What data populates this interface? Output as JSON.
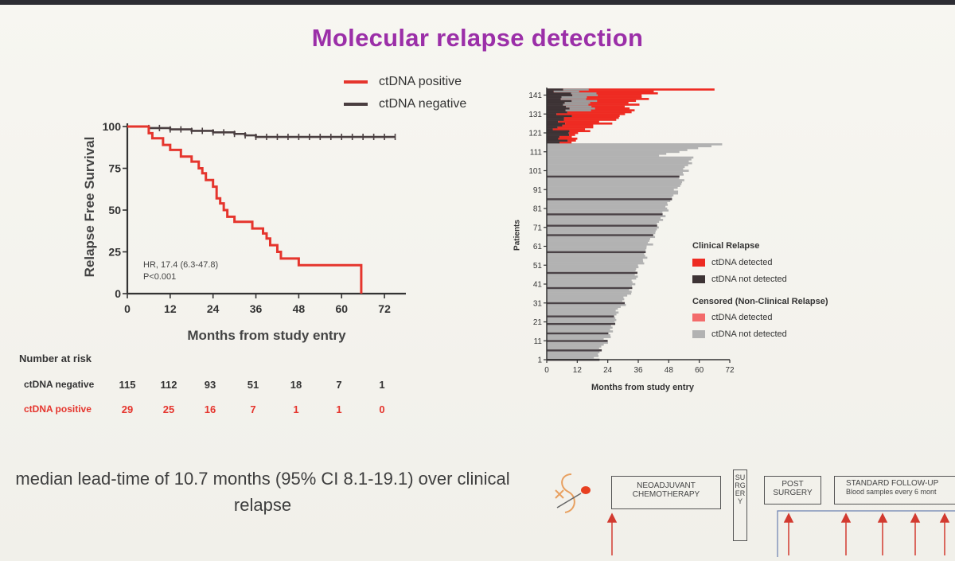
{
  "slide": {
    "title": "Molecular relapse detection",
    "median_text": "median lead-time of 10.7 months (95% CI 8.1-19.1) over clinical relapse"
  },
  "colors": {
    "positive": "#e5352d",
    "negative": "#4a3e40",
    "title": "#9b2fa8",
    "censored_gray": "#b2b2b2"
  },
  "chart_data": [
    {
      "type": "line",
      "legend": [
        {
          "label": "ctDNA positive",
          "color": "#e5352d"
        },
        {
          "label": "ctDNA negative",
          "color": "#4a3e40"
        }
      ],
      "legend_placement": "top-right",
      "ylabel": "Relapse Free Survival",
      "xlabel": "Months from study entry",
      "xlim": [
        0,
        78
      ],
      "ylim": [
        0,
        100
      ],
      "xticks": [
        0,
        12,
        24,
        36,
        48,
        60,
        72
      ],
      "yticks": [
        0,
        25,
        50,
        75,
        100
      ],
      "annotations": [
        "HR, 17.4 (6.3-47.8)",
        "P<0.001"
      ],
      "series": [
        {
          "name": "ctDNA positive",
          "x": [
            0,
            4,
            6,
            7,
            10,
            12,
            14,
            15,
            17,
            18,
            20,
            21,
            22,
            24,
            25,
            26,
            27,
            28,
            30,
            33,
            35,
            36,
            38,
            39,
            40,
            42,
            43,
            48,
            55,
            63,
            65,
            65.5
          ],
          "y": [
            100,
            100,
            96,
            93,
            89,
            86,
            86,
            82,
            82,
            79,
            75,
            72,
            68,
            64,
            57,
            54,
            50,
            46,
            43,
            43,
            39,
            39,
            36,
            33,
            29,
            25,
            21,
            17,
            17,
            17,
            17,
            0
          ]
        },
        {
          "name": "ctDNA negative",
          "x": [
            0,
            3,
            6,
            9,
            12,
            15,
            18,
            21,
            24,
            27,
            30,
            33,
            36,
            39,
            42,
            45,
            48,
            51,
            54,
            57,
            60,
            63,
            66,
            69,
            72,
            75
          ],
          "y": [
            100,
            100,
            99.1,
            99.1,
            98.3,
            98.3,
            97.4,
            97.4,
            96.5,
            96.5,
            95.6,
            94.7,
            93.8,
            93.8,
            93.8,
            93.8,
            93.8,
            93.8,
            93.8,
            93.8,
            93.8,
            93.8,
            93.8,
            93.8,
            93.8,
            93.8
          ]
        }
      ],
      "risk_table": {
        "title": "Number at risk",
        "timepoints": [
          0,
          12,
          24,
          36,
          48,
          60,
          72
        ],
        "rows": [
          {
            "label": "ctDNA negative",
            "values": [
              "115",
              "112",
              "93",
              "51",
              "18",
              "7",
              "1"
            ]
          },
          {
            "label": "ctDNA positive",
            "values": [
              "29",
              "25",
              "16",
              "7",
              "1",
              "1",
              "0"
            ]
          }
        ]
      }
    },
    {
      "type": "bar",
      "orientation": "horizontal",
      "ylabel": "Patients",
      "xlabel": "Months from study entry",
      "xlim": [
        0,
        72
      ],
      "ylim": [
        1,
        145
      ],
      "xticks": [
        0,
        12,
        24,
        36,
        48,
        60,
        72
      ],
      "yticks": [
        1,
        11,
        21,
        31,
        41,
        51,
        61,
        71,
        81,
        91,
        101,
        111,
        121,
        131,
        141
      ],
      "legend": {
        "clinical_relapse_title": "Clinical Relapse",
        "clinical_relapse": [
          {
            "label": "ctDNA detected",
            "color": "#ee2b22"
          },
          {
            "label": "ctDNA not detected",
            "color": "#3d3335"
          }
        ],
        "censored_title": "Censored (Non-Clinical Relapse)",
        "censored": [
          {
            "label": "ctDNA detected",
            "color": "#f36b6b"
          },
          {
            "label": "ctDNA not detected",
            "color": "#b2b2b2"
          }
        ]
      },
      "groups": [
        {
          "name": "relapse",
          "patients_from": 116,
          "patients_to": 144,
          "max_months": 66,
          "min_months": 4
        },
        {
          "name": "censored",
          "patients_from": 1,
          "patients_to": 115,
          "max_months": 69,
          "min_months": 6
        }
      ]
    }
  ],
  "timeline": {
    "boxes": [
      {
        "label": "NEOADJUVANT CHEMOTHERAPY"
      },
      {
        "label": "SURGERY"
      },
      {
        "label": "POST SURGERY"
      },
      {
        "label": "STANDARD FOLLOW-UP",
        "sub": "Blood samples every 6 mont"
      }
    ]
  }
}
